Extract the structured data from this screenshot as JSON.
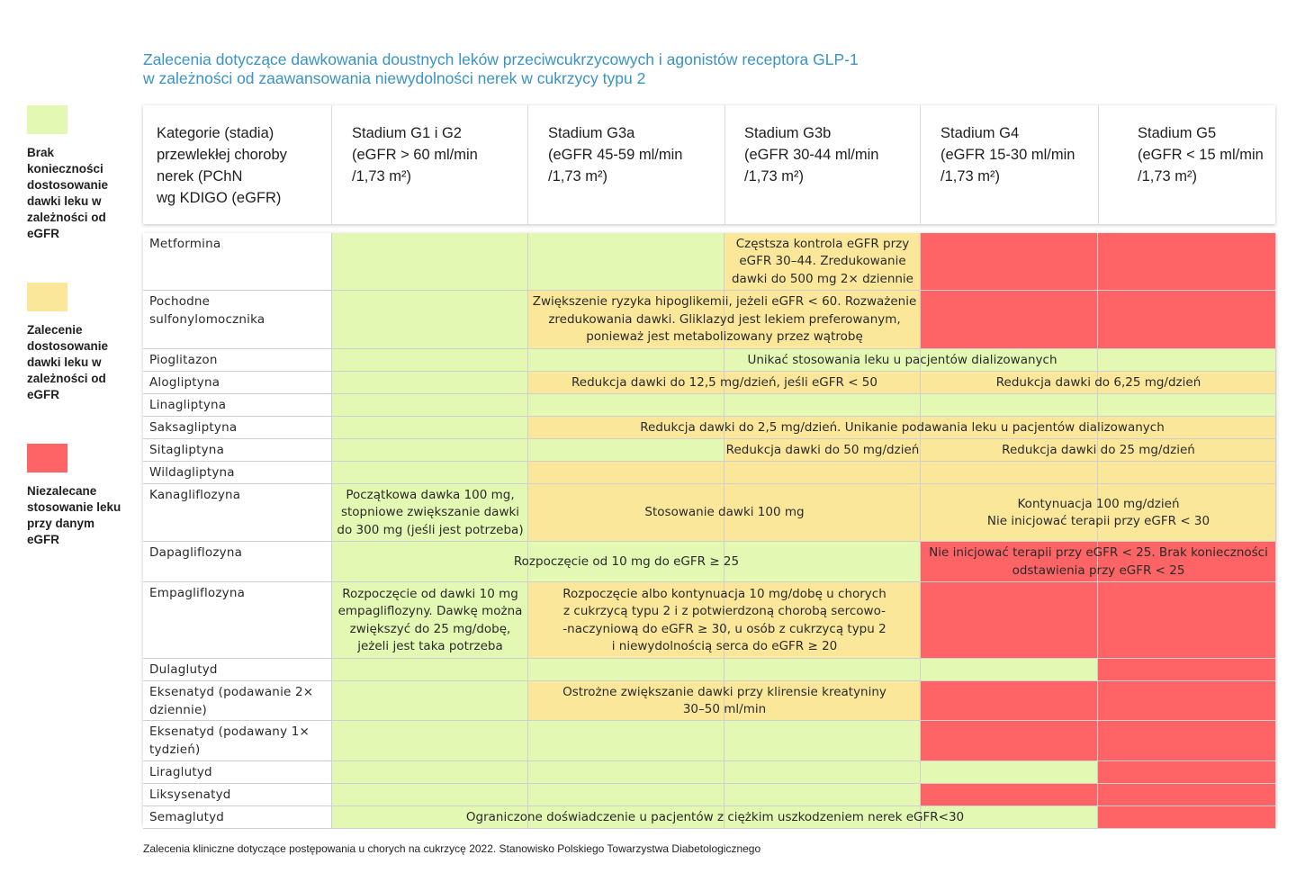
{
  "title": {
    "line1": "Zalecenia dotyczące dawkowania doustnych leków przeciwcukrzycowych i agonistów receptora GLP-1",
    "line2": "w zależności od zaawansowania niewydolności nerek w cukrzycy typu 2"
  },
  "colors": {
    "green": "#e3f8b3",
    "yellow": "#fbe79a",
    "red": "#fe6465",
    "title": "#3a93c3"
  },
  "legend": [
    {
      "color": "green",
      "label": "Brak konieczności dostosowanie dawki leku w zależności od eGFR"
    },
    {
      "color": "yellow",
      "label": "Zalecenie dostosowanie dawki leku w zależności od eGFR"
    },
    {
      "color": "red",
      "label": "Niezalecane stosowanie leku przy danym eGFR"
    }
  ],
  "header": {
    "category": [
      "Kategorie (stadia)",
      "przewlekłej choroby",
      "nerek (PChN",
      "wg KDIGO (eGFR)"
    ],
    "stages": [
      {
        "name": "Stadium G1 i G2",
        "range": "(eGFR > 60 ml/min",
        "unit": "/1,73 m²)"
      },
      {
        "name": "Stadium G3a",
        "range": "(eGFR 45-59 ml/min",
        "unit": "/1,73 m²)"
      },
      {
        "name": "Stadium G3b",
        "range": "(eGFR 30-44 ml/min",
        "unit": "/1,73 m²)"
      },
      {
        "name": "Stadium G4",
        "range": "(eGFR 15-30 ml/min",
        "unit": "/1,73 m²)"
      },
      {
        "name": "Stadium G5",
        "range": "(eGFR < 15 ml/min",
        "unit": "/1,73 m²)"
      }
    ]
  },
  "rows": [
    {
      "drug": [
        "Metformina"
      ],
      "stages": [
        "green",
        "green",
        "yellow",
        "red",
        "red"
      ],
      "notes": [
        {
          "from": 2,
          "to": 2,
          "lines": [
            "Częstsza kontrola eGFR przy",
            "eGFR 30–44. Zredukowanie",
            "dawki do 500 mg 2× dziennie"
          ]
        }
      ]
    },
    {
      "drug": [
        "Pochodne",
        "sulfonylomocznika"
      ],
      "stages": [
        "green",
        "yellow",
        "yellow",
        "red",
        "red"
      ],
      "notes": [
        {
          "from": 1,
          "to": 2,
          "lines": [
            "Zwiększenie ryzyka hipoglikemii, jeżeli eGFR < 60. Rozważenie",
            "zredukowania dawki. Gliklazyd jest lekiem preferowanym,",
            "ponieważ jest metabolizowany przez wątrobę"
          ]
        }
      ]
    },
    {
      "drug": [
        "Pioglitazon"
      ],
      "stages": [
        "green",
        "green",
        "green",
        "green",
        "green"
      ],
      "notes": [
        {
          "from": 1,
          "to": 4,
          "lines": [
            "Unikać stosowania leku u pacjentów dializowanych"
          ]
        }
      ]
    },
    {
      "drug": [
        "Alogliptyna"
      ],
      "stages": [
        "green",
        "yellow",
        "yellow",
        "yellow",
        "yellow"
      ],
      "notes": [
        {
          "from": 1,
          "to": 2,
          "lines": [
            "Redukcja dawki do 12,5 mg/dzień, jeśli eGFR < 50"
          ]
        },
        {
          "from": 3,
          "to": 4,
          "lines": [
            "Redukcja dawki do 6,25 mg/dzień"
          ]
        }
      ]
    },
    {
      "drug": [
        "Linagliptyna"
      ],
      "stages": [
        "green",
        "green",
        "green",
        "green",
        "green"
      ],
      "notes": []
    },
    {
      "drug": [
        "Saksagliptyna"
      ],
      "stages": [
        "green",
        "yellow",
        "yellow",
        "yellow",
        "yellow"
      ],
      "notes": [
        {
          "from": 1,
          "to": 4,
          "lines": [
            "Redukcja dawki do 2,5 mg/dzień. Unikanie podawania leku u pacjentów dializowanych"
          ]
        }
      ]
    },
    {
      "drug": [
        "Sitagliptyna"
      ],
      "stages": [
        "green",
        "green",
        "yellow",
        "yellow",
        "yellow"
      ],
      "notes": [
        {
          "from": 2,
          "to": 2,
          "lines": [
            "Redukcja dawki do 50 mg/dzień"
          ]
        },
        {
          "from": 3,
          "to": 4,
          "lines": [
            "Redukcja dawki do 25 mg/dzień"
          ]
        }
      ]
    },
    {
      "drug": [
        "Wildagliptyna"
      ],
      "stages": [
        "green",
        "yellow",
        "yellow",
        "yellow",
        "yellow"
      ],
      "notes": []
    },
    {
      "drug": [
        "Kanagliflozyna"
      ],
      "stages": [
        "green",
        "yellow",
        "yellow",
        "yellow",
        "yellow"
      ],
      "notes": [
        {
          "from": 0,
          "to": 0,
          "lines": [
            "Początkowa dawka 100 mg,",
            "stopniowe zwiększanie dawki",
            "do 300 mg (jeśli jest potrzeba)"
          ]
        },
        {
          "from": 1,
          "to": 2,
          "lines": [
            "Stosowanie dawki 100 mg"
          ]
        },
        {
          "from": 3,
          "to": 4,
          "lines": [
            "Kontynuacja 100 mg/dzień",
            "Nie inicjować terapii przy eGFR < 30"
          ]
        }
      ]
    },
    {
      "drug": [
        "Dapagliflozyna"
      ],
      "stages": [
        "green",
        "green",
        "green",
        "red",
        "red"
      ],
      "notes": [
        {
          "from": 0,
          "to": 2,
          "lines": [
            "Rozpoczęcie od 10 mg do eGFR ≥ 25"
          ]
        },
        {
          "from": 3,
          "to": 4,
          "lines": [
            "Nie inicjować terapii przy eGFR < 25. Brak konieczności",
            "odstawienia przy eGFR < 25"
          ]
        }
      ]
    },
    {
      "drug": [
        "Empagliflozyna"
      ],
      "stages": [
        "green",
        "yellow",
        "yellow",
        "red",
        "red"
      ],
      "notes": [
        {
          "from": 0,
          "to": 0,
          "lines": [
            "Rozpoczęcie od dawki 10 mg",
            "empagliflozyny. Dawkę można",
            "zwiększyć do 25 mg/dobę,",
            "jeżeli jest taka potrzeba"
          ]
        },
        {
          "from": 1,
          "to": 2,
          "lines": [
            "Rozpoczęcie albo kontynuacja 10 mg/dobę u chorych",
            "z cukrzycą typu 2 i z potwierdzoną chorobą sercowo-",
            "-naczyniową do eGFR ≥ 30, u osób z cukrzycą typu 2",
            "i niewydolnością serca do eGFR ≥ 20"
          ]
        }
      ]
    },
    {
      "drug": [
        "Dulaglutyd"
      ],
      "stages": [
        "green",
        "green",
        "green",
        "green",
        "red"
      ],
      "notes": []
    },
    {
      "drug": [
        "Eksenatyd (podawanie 2×",
        "dziennie)"
      ],
      "stages": [
        "green",
        "yellow",
        "yellow",
        "red",
        "red"
      ],
      "notes": [
        {
          "from": 1,
          "to": 2,
          "lines": [
            "Ostrożne zwiększanie dawki przy klirensie kreatyniny",
            "30–50 ml/min"
          ]
        }
      ]
    },
    {
      "drug": [
        "Eksenatyd (podawany 1×",
        "tydzień)"
      ],
      "stages": [
        "green",
        "green",
        "green",
        "red",
        "red"
      ],
      "notes": []
    },
    {
      "drug": [
        "Liraglutyd"
      ],
      "stages": [
        "green",
        "green",
        "green",
        "green",
        "red"
      ],
      "notes": []
    },
    {
      "drug": [
        "Liksysenatyd"
      ],
      "stages": [
        "green",
        "green",
        "green",
        "red",
        "red"
      ],
      "notes": []
    },
    {
      "drug": [
        "Semaglutyd"
      ],
      "stages": [
        "green",
        "green",
        "green",
        "green",
        "red"
      ],
      "notes": [
        {
          "from": 0,
          "to": 3,
          "lines": [
            "Ograniczone doświadczenie u pacjentów z ciężkim uszkodzeniem nerek eGFR<30"
          ]
        }
      ]
    }
  ],
  "footnote": "Zalecenia kliniczne dotyczące postępowania u chorych na cukrzycę 2022. Stanowisko Polskiego Towarzystwa Diabetologicznego"
}
